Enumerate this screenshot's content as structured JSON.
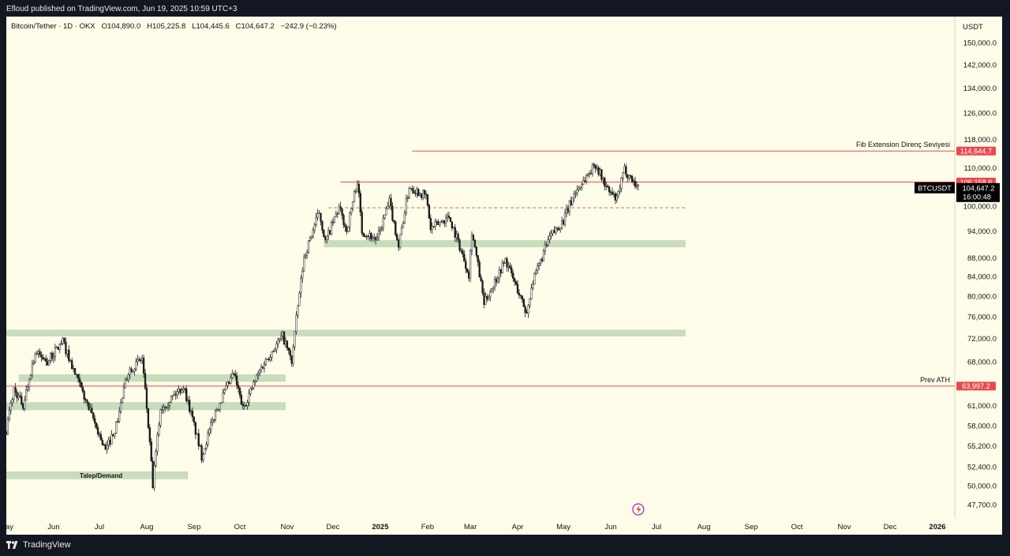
{
  "header": {
    "publish_line": "Efloud published on TradingView.com, Jun 19, 2025 10:59 UTC+3",
    "symbol": "Bitcoin/Tether · 1D · OKX",
    "open": "O104,890.0",
    "high": "H105,225.8",
    "low": "L104,445.6",
    "close": "C104,647.2",
    "change": "−242.9 (−0.23%)"
  },
  "footer": {
    "brand": "TradingView"
  },
  "colors": {
    "background": "#fffde9",
    "zone": "#c9dcbc",
    "resistance": "#e8494e",
    "candle": "#1a1a1a",
    "frame": "#131722"
  },
  "chart_data": {
    "type": "candlestick",
    "price_unit": "USDT",
    "y_scale": "log",
    "ylim": [
      46500,
      160000
    ],
    "y_ticks": [
      "150,000.0",
      "142,000.0",
      "134,000.0",
      "126,000.0",
      "118,000.0",
      "110,000.0",
      "100,000.0",
      "94,000.0",
      "88,000.0",
      "84,000.0",
      "80,000.0",
      "76,000.0",
      "72,000.0",
      "68,000.0",
      "61,000.0",
      "58,000.0",
      "55,200.0",
      "52,400.0",
      "50,000.0",
      "47,700.0"
    ],
    "y_tick_values": [
      150000,
      142000,
      134000,
      126000,
      118000,
      110000,
      100000,
      94000,
      88000,
      84000,
      80000,
      76000,
      72000,
      68000,
      61000,
      58000,
      55200,
      52400,
      50000,
      47700
    ],
    "x_ticks": [
      {
        "label": "May",
        "date": "2024-05-01",
        "bold": false
      },
      {
        "label": "Jun",
        "date": "2024-06-01",
        "bold": false
      },
      {
        "label": "Jul",
        "date": "2024-07-01",
        "bold": false
      },
      {
        "label": "Aug",
        "date": "2024-08-01",
        "bold": false
      },
      {
        "label": "Sep",
        "date": "2024-09-01",
        "bold": false
      },
      {
        "label": "Oct",
        "date": "2024-10-01",
        "bold": false
      },
      {
        "label": "Nov",
        "date": "2024-11-01",
        "bold": false
      },
      {
        "label": "Dec",
        "date": "2024-12-01",
        "bold": false
      },
      {
        "label": "2025",
        "date": "2025-01-01",
        "bold": true
      },
      {
        "label": "Feb",
        "date": "2025-02-01",
        "bold": false
      },
      {
        "label": "Mar",
        "date": "2025-03-01",
        "bold": false
      },
      {
        "label": "Apr",
        "date": "2025-04-01",
        "bold": false
      },
      {
        "label": "May",
        "date": "2025-05-01",
        "bold": false
      },
      {
        "label": "Jun",
        "date": "2025-06-01",
        "bold": false
      },
      {
        "label": "Jul",
        "date": "2025-07-01",
        "bold": false
      },
      {
        "label": "Aug",
        "date": "2025-08-01",
        "bold": false
      },
      {
        "label": "Sep",
        "date": "2025-09-01",
        "bold": false
      },
      {
        "label": "Oct",
        "date": "2025-10-01",
        "bold": false
      },
      {
        "label": "Nov",
        "date": "2025-11-01",
        "bold": false
      },
      {
        "label": "Dec",
        "date": "2025-12-01",
        "bold": false
      },
      {
        "label": "2026",
        "date": "2026-01-01",
        "bold": true
      }
    ],
    "price_path": [
      [
        "2024-05-01",
        57500
      ],
      [
        "2024-05-06",
        63500
      ],
      [
        "2024-05-12",
        61000
      ],
      [
        "2024-05-20",
        69500
      ],
      [
        "2024-05-28",
        68000
      ],
      [
        "2024-06-07",
        71500
      ],
      [
        "2024-06-14",
        66500
      ],
      [
        "2024-06-24",
        60500
      ],
      [
        "2024-07-05",
        54500
      ],
      [
        "2024-07-12",
        58000
      ],
      [
        "2024-07-20",
        66500
      ],
      [
        "2024-07-29",
        68500
      ],
      [
        "2024-08-05",
        50000
      ],
      [
        "2024-08-10",
        60500
      ],
      [
        "2024-08-25",
        64000
      ],
      [
        "2024-09-06",
        53800
      ],
      [
        "2024-09-15",
        60000
      ],
      [
        "2024-09-27",
        66000
      ],
      [
        "2024-10-03",
        60500
      ],
      [
        "2024-10-15",
        67000
      ],
      [
        "2024-10-29",
        72500
      ],
      [
        "2024-11-04",
        68000
      ],
      [
        "2024-11-12",
        88000
      ],
      [
        "2024-11-22",
        98500
      ],
      [
        "2024-11-26",
        91500
      ],
      [
        "2024-12-05",
        99500
      ],
      [
        "2024-12-10",
        94000
      ],
      [
        "2024-12-17",
        106500
      ],
      [
        "2024-12-20",
        94000
      ],
      [
        "2024-12-30",
        92000
      ],
      [
        "2025-01-07",
        101000
      ],
      [
        "2025-01-13",
        90500
      ],
      [
        "2025-01-20",
        105000
      ],
      [
        "2025-01-31",
        102500
      ],
      [
        "2025-02-03",
        94500
      ],
      [
        "2025-02-15",
        97500
      ],
      [
        "2025-02-28",
        84500
      ],
      [
        "2025-03-02",
        94000
      ],
      [
        "2025-03-10",
        78500
      ],
      [
        "2025-03-24",
        87500
      ],
      [
        "2025-04-07",
        76500
      ],
      [
        "2025-04-10",
        82000
      ],
      [
        "2025-04-22",
        92500
      ],
      [
        "2025-05-01",
        96500
      ],
      [
        "2025-05-08",
        103000
      ],
      [
        "2025-05-22",
        111000
      ],
      [
        "2025-05-30",
        104000
      ],
      [
        "2025-06-05",
        101500
      ],
      [
        "2025-06-10",
        109500
      ],
      [
        "2025-06-19",
        104647.2
      ]
    ],
    "levels": [
      {
        "price": 114644.7,
        "label": "114,644.7",
        "name": "Fib Extension Direnç Seviyesi",
        "start": "2025-01-22",
        "style": "solid"
      },
      {
        "price": 106158.6,
        "label": "106,158.6",
        "name": "",
        "start": "2024-12-06",
        "style": "solid"
      },
      {
        "price": 99600,
        "label": "",
        "name": "",
        "start": "2024-11-28",
        "end": "2025-07-20",
        "style": "dashed"
      },
      {
        "price": 63997.2,
        "label": "63,997.2",
        "name": "Prev ATH",
        "start": "2024-05-01",
        "style": "solid"
      }
    ],
    "zones": [
      {
        "low": 90300,
        "high": 91900,
        "start": "2024-11-25",
        "end": "2025-07-20"
      },
      {
        "low": 72400,
        "high": 73600,
        "start": "2024-05-01",
        "end": "2025-07-20"
      },
      {
        "low": 64700,
        "high": 65900,
        "start": "2024-05-09",
        "end": "2024-10-31"
      },
      {
        "low": 60300,
        "high": 61500,
        "start": "2024-05-01",
        "end": "2024-10-31"
      },
      {
        "low": 50800,
        "high": 51800,
        "start": "2024-05-01",
        "end": "2024-08-28",
        "name": "Talep/Demand"
      }
    ],
    "last_price": {
      "symbol": "BTCUSDT",
      "label": "104,647.2",
      "countdown": "16:00:48",
      "date": "2025-06-19"
    }
  }
}
